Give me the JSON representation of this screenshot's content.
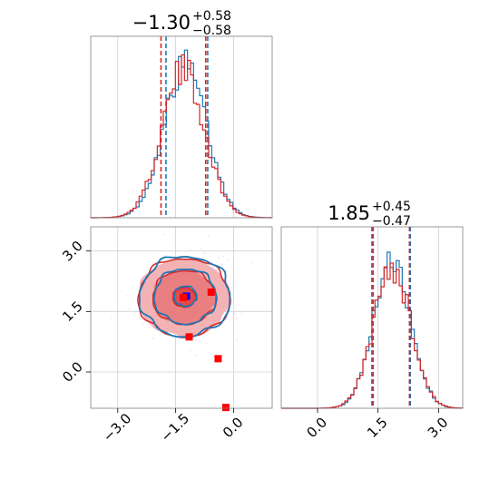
{
  "chart_data": [
    {
      "type": "histogram",
      "panel": "top-left",
      "param_index": 0,
      "title": {
        "median": "−1.30",
        "plus": "+0.58",
        "minus": "−0.58"
      },
      "xlim": [
        -3.7,
        1.0
      ],
      "grid": true,
      "series": [
        {
          "color": "#1f77b4",
          "mean": -1.25,
          "sd": 0.55,
          "peak": 1.0,
          "quantiles": [
            -1.75,
            -0.67
          ]
        },
        {
          "color": "#d62728",
          "mean": -1.3,
          "sd": 0.55,
          "peak": 0.97,
          "quantiles": [
            -1.88,
            -0.72
          ]
        }
      ]
    },
    {
      "type": "histogram",
      "panel": "bottom-right",
      "param_index": 1,
      "title": {
        "median": "1.85",
        "plus": "+0.45",
        "minus": "−0.47"
      },
      "xlim": [
        -0.9,
        3.6
      ],
      "xticks": [
        "0.0",
        "1.5",
        "3.0"
      ],
      "grid": true,
      "series": [
        {
          "color": "#1f77b4",
          "mean": 1.85,
          "sd": 0.45,
          "peak": 1.0,
          "quantiles": [
            1.38,
            2.3
          ]
        },
        {
          "color": "#d62728",
          "mean": 1.85,
          "sd": 0.46,
          "peak": 0.93,
          "quantiles": [
            1.35,
            2.28
          ]
        }
      ]
    },
    {
      "type": "contour",
      "panel": "bottom-left",
      "xlim": [
        -3.7,
        1.0
      ],
      "ylim": [
        -0.9,
        3.6
      ],
      "xticks": [
        "−3.0",
        "−1.5",
        "0.0"
      ],
      "yticks": [
        "0.0",
        "1.5",
        "3.0"
      ],
      "grid": true,
      "center": [
        -1.28,
        1.85
      ],
      "spread": [
        0.55,
        0.45
      ],
      "series": [
        {
          "color": "#1f77b4",
          "style": "lines",
          "levels": [
            0.4,
            1.1,
            1.6
          ]
        },
        {
          "color": "#d62728",
          "style": "filled",
          "levels": [
            0.4,
            1.1,
            1.6
          ]
        }
      ],
      "markers": [
        {
          "x": -1.22,
          "y": 1.88,
          "color": "#0000ff"
        },
        {
          "x": -1.3,
          "y": 1.85,
          "color": "#ff0000"
        },
        {
          "x": -0.58,
          "y": 1.98,
          "color": "#ff0000"
        },
        {
          "x": -1.15,
          "y": 0.87,
          "color": "#ff0000"
        },
        {
          "x": -0.4,
          "y": 0.33,
          "color": "#ff0000"
        },
        {
          "x": -0.2,
          "y": -0.88,
          "color": "#ff0000"
        }
      ]
    }
  ]
}
